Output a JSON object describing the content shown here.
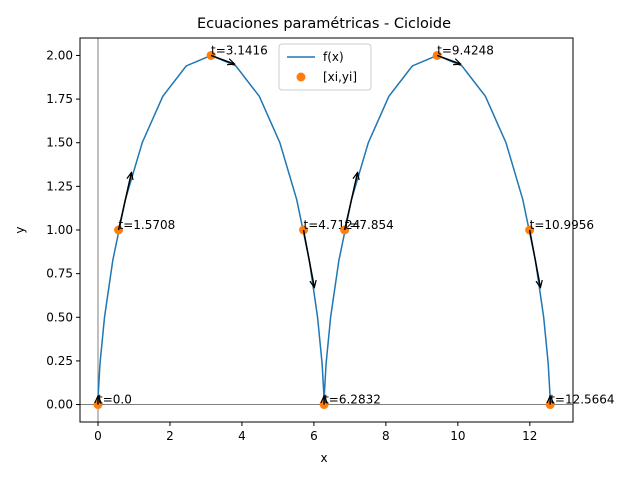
{
  "chart_data": {
    "type": "line",
    "title": "Ecuaciones paramétricas - Cicloide",
    "xlabel": "x",
    "ylabel": "y",
    "xlim": [
      -0.5,
      13.2
    ],
    "ylim": [
      -0.1,
      2.1
    ],
    "xticks": [
      0,
      2,
      4,
      6,
      8,
      10,
      12
    ],
    "yticks": [
      {
        "value": 0,
        "label": "0.00"
      },
      {
        "value": 0.25,
        "label": "0.25"
      },
      {
        "value": 0.5,
        "label": "0.50"
      },
      {
        "value": 0.75,
        "label": "0.75"
      },
      {
        "value": 1,
        "label": "1.00"
      },
      {
        "value": 1.25,
        "label": "1.25"
      },
      {
        "value": 1.5,
        "label": "1.50"
      },
      {
        "value": 1.75,
        "label": "1.75"
      },
      {
        "value": 2,
        "label": "2.00"
      }
    ],
    "axhline": 0,
    "axvline": 0,
    "legend": "upper center",
    "series": [
      {
        "name": "f(x)",
        "color": "#1f77b4",
        "x": [
          0,
          0.0071,
          0.0553,
          0.1812,
          0.4115,
          0.7605,
          1.2284,
          1.8007,
          2.4505,
          3.1416,
          3.8327,
          4.4825,
          5.0548,
          5.5227,
          5.8717,
          6.102,
          6.2279,
          6.2761,
          6.2832,
          6.2903,
          6.3385,
          6.4644,
          6.6947,
          7.0437,
          7.5116,
          8.0839,
          8.7337,
          9.4248,
          10.1159,
          10.7657,
          11.338,
          11.8059,
          12.1549,
          12.3852,
          12.5111,
          12.5593,
          12.5664
        ],
        "values": [
          0,
          0.0603,
          0.234,
          0.5,
          0.8264,
          1.1736,
          1.5,
          1.766,
          1.9397,
          2,
          1.9397,
          1.766,
          1.5,
          1.1736,
          0.8264,
          0.5,
          0.234,
          0.0603,
          0,
          0.0603,
          0.234,
          0.5,
          0.8264,
          1.1736,
          1.5,
          1.766,
          1.9397,
          2,
          1.9397,
          1.766,
          1.5,
          1.1736,
          0.8264,
          0.5,
          0.234,
          0.0603,
          0
        ]
      },
      {
        "name": "[xi,yi]",
        "color": "#ff7f0e",
        "x": [
          0,
          0.5708,
          3.1416,
          5.7124,
          6.2832,
          6.854,
          9.4248,
          11.9956,
          12.5664
        ],
        "values": [
          0,
          1,
          2,
          1,
          0,
          1,
          2,
          1,
          0
        ],
        "annotations": [
          "t=0.0",
          "t=1.5708",
          "t=3.1416",
          "t=4.7124",
          "t=6.2832",
          "t=7.854",
          "t=9.4248",
          "t=10.9956",
          "t=12.5664"
        ],
        "arrows_dx": [
          0,
          0.36,
          0.66,
          0.3,
          0,
          0.36,
          0.66,
          0.3,
          0
        ],
        "arrows_dy": [
          0.05,
          0.33,
          -0.05,
          -0.33,
          0.05,
          0.33,
          -0.05,
          -0.33,
          0.05
        ]
      }
    ]
  }
}
